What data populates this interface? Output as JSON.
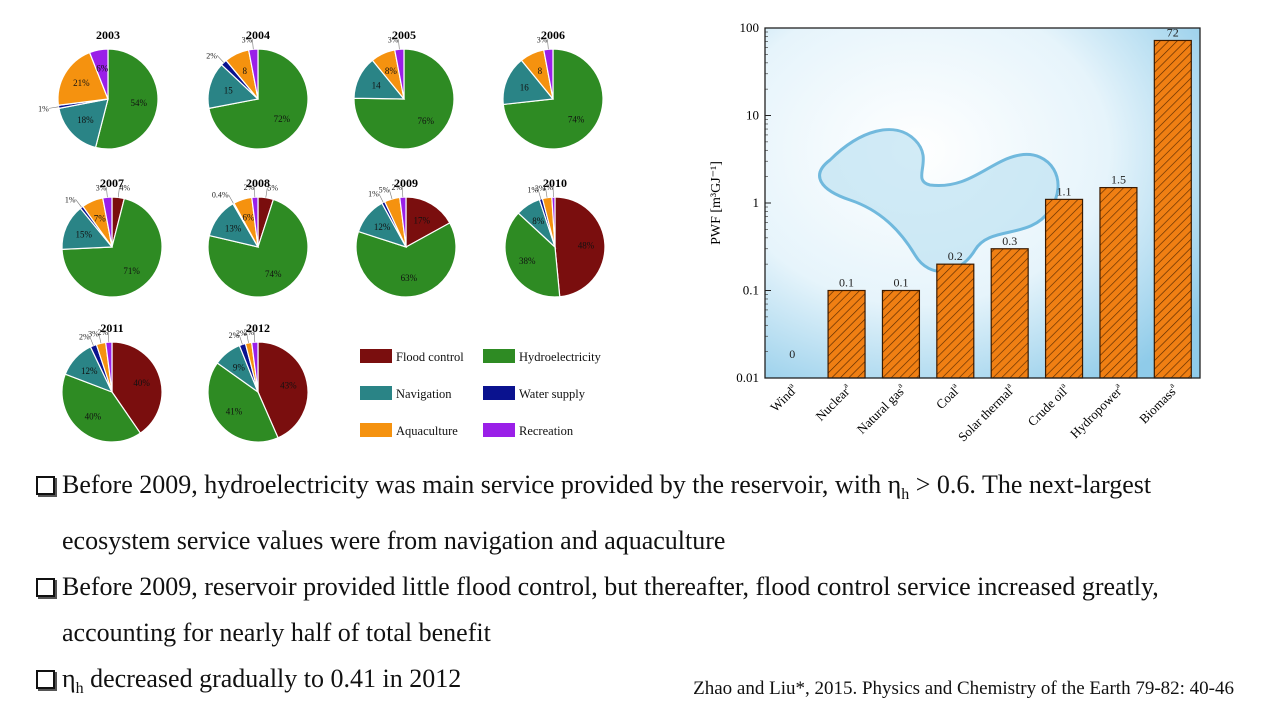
{
  "chart_data": [
    {
      "type": "pie",
      "units": "%",
      "categories": [
        "Flood control",
        "Hydroelectricity",
        "Navigation",
        "Water supply",
        "Aquaculture",
        "Recreation"
      ],
      "colors": {
        "Flood control": "#7a0e0e",
        "Hydroelectricity": "#2e8b23",
        "Navigation": "#2a8486",
        "Water supply": "#0a128f",
        "Aquaculture": "#f5920f",
        "Recreation": "#9a1fe8"
      },
      "legend_position": "bottom-right",
      "pies": [
        {
          "title": "2003",
          "values": {
            "Hydroelectricity": 54,
            "Navigation": 18,
            "Water supply": 1,
            "Aquaculture": 21,
            "Recreation": 6
          },
          "labels": {
            "Hydroelectricity": "54%",
            "Navigation": "18%",
            "Water supply": "1%",
            "Aquaculture": "21%",
            "Recreation": "6%"
          }
        },
        {
          "title": "2004",
          "values": {
            "Hydroelectricity": 72,
            "Navigation": 15,
            "Water supply": 2,
            "Aquaculture": 8,
            "Recreation": 3
          },
          "labels": {
            "Hydroelectricity": "72%",
            "Navigation": "15",
            "Water supply": "2%",
            "Aquaculture": "8",
            "Recreation": "3%"
          }
        },
        {
          "title": "2005",
          "values": {
            "Hydroelectricity": 76,
            "Navigation": 14,
            "Aquaculture": 8,
            "Recreation": 3
          },
          "labels": {
            "Hydroelectricity": "76%",
            "Navigation": "14",
            "Aquaculture": "8%",
            "Recreation": "3%"
          }
        },
        {
          "title": "2006",
          "values": {
            "Hydroelectricity": 74,
            "Navigation": 16,
            "Aquaculture": 8,
            "Recreation": 3
          },
          "labels": {
            "Hydroelectricity": "74%",
            "Navigation": "16",
            "Aquaculture": "8",
            "Recreation": "3%"
          }
        },
        {
          "title": "2007",
          "values": {
            "Flood control": 4,
            "Hydroelectricity": 71,
            "Navigation": 15,
            "Water supply": 1,
            "Aquaculture": 7,
            "Recreation": 3
          },
          "labels": {
            "Flood control": "4%",
            "Hydroelectricity": "71%",
            "Navigation": "15%",
            "Water supply": "1%",
            "Aquaculture": "7%",
            "Recreation": "3%"
          }
        },
        {
          "title": "2008",
          "values": {
            "Flood control": 5,
            "Hydroelectricity": 74,
            "Navigation": 13,
            "Water supply": 0.4,
            "Aquaculture": 6,
            "Recreation": 2
          },
          "labels": {
            "Flood control": "5%",
            "Hydroelectricity": "74%",
            "Navigation": "13%",
            "Water supply": "0.4%",
            "Aquaculture": "6%",
            "Recreation": "2%"
          }
        },
        {
          "title": "2009",
          "values": {
            "Flood control": 17,
            "Hydroelectricity": 63,
            "Navigation": 12,
            "Water supply": 1,
            "Aquaculture": 5,
            "Recreation": 2
          },
          "labels": {
            "Flood control": "17%",
            "Hydroelectricity": "63%",
            "Navigation": "12%",
            "Water supply": "1%",
            "Aquaculture": "5%",
            "Recreation": "2%"
          }
        },
        {
          "title": "2010",
          "values": {
            "Flood control": 48,
            "Hydroelectricity": 38,
            "Navigation": 8,
            "Water supply": 1,
            "Aquaculture": 3,
            "Recreation": 1
          },
          "labels": {
            "Flood control": "48%",
            "Hydroelectricity": "38%",
            "Navigation": "8%",
            "Water supply": "1%",
            "Aquaculture": "3%",
            "Recreation": "1%"
          }
        },
        {
          "title": "2011",
          "values": {
            "Flood control": 40,
            "Hydroelectricity": 40,
            "Navigation": 12,
            "Water supply": 2,
            "Aquaculture": 3,
            "Recreation": 2
          },
          "labels": {
            "Flood control": "40%",
            "Hydroelectricity": "40%",
            "Navigation": "12%",
            "Water supply": "2%",
            "Aquaculture": "3%",
            "Recreation": "2%"
          }
        },
        {
          "title": "2012",
          "values": {
            "Flood control": 43,
            "Hydroelectricity": 41,
            "Navigation": 9,
            "Water supply": 2,
            "Aquaculture": 2,
            "Recreation": 2
          },
          "labels": {
            "Flood control": "43%",
            "Hydroelectricity": "41%",
            "Navigation": "9%",
            "Water supply": "2%",
            "Aquaculture": "2%",
            "Recreation": "2%"
          }
        }
      ]
    },
    {
      "type": "bar",
      "categories": [
        "Wind",
        "Nuclear",
        "Natural gas",
        "Coal",
        "Solar thermal",
        "Crude oil",
        "Hydropower",
        "Biomass"
      ],
      "category_superscripts": [
        "a",
        "a",
        "a",
        "a",
        "a",
        "a",
        "a",
        "a"
      ],
      "values": [
        0,
        0.1,
        0.1,
        0.2,
        0.3,
        1.1,
        1.5,
        72
      ],
      "data_labels": [
        "0",
        "0.1",
        "0.1",
        "0.2",
        "0.3",
        "1.1",
        "1.5",
        "72"
      ],
      "ylabel": "PWF [m³GJ⁻¹]",
      "yscale": "log",
      "ylim": [
        0.01,
        100
      ],
      "yticks": [
        "0.01",
        "0.1",
        "1",
        "10",
        "100"
      ],
      "bar_color": "#f07f13",
      "hatch": true
    }
  ],
  "bullets": [
    {
      "pre": "Before 2009, hydroelectricity was main service provided by the reservoir, with η",
      "sub": "h",
      "post": " > 0.6. The next-largest ecosystem service values were from navigation and aquaculture"
    },
    {
      "pre": "Before 2009, reservoir provided little flood control, but thereafter, flood control service increased greatly, accounting for nearly half of total benefit",
      "sub": "",
      "post": ""
    },
    {
      "pre": "η",
      "sub": "h",
      "post": " decreased gradually to 0.41 in 2012"
    }
  ],
  "citation": "Zhao and Liu*, 2015. Physics and Chemistry of the Earth 79-82: 40-46"
}
